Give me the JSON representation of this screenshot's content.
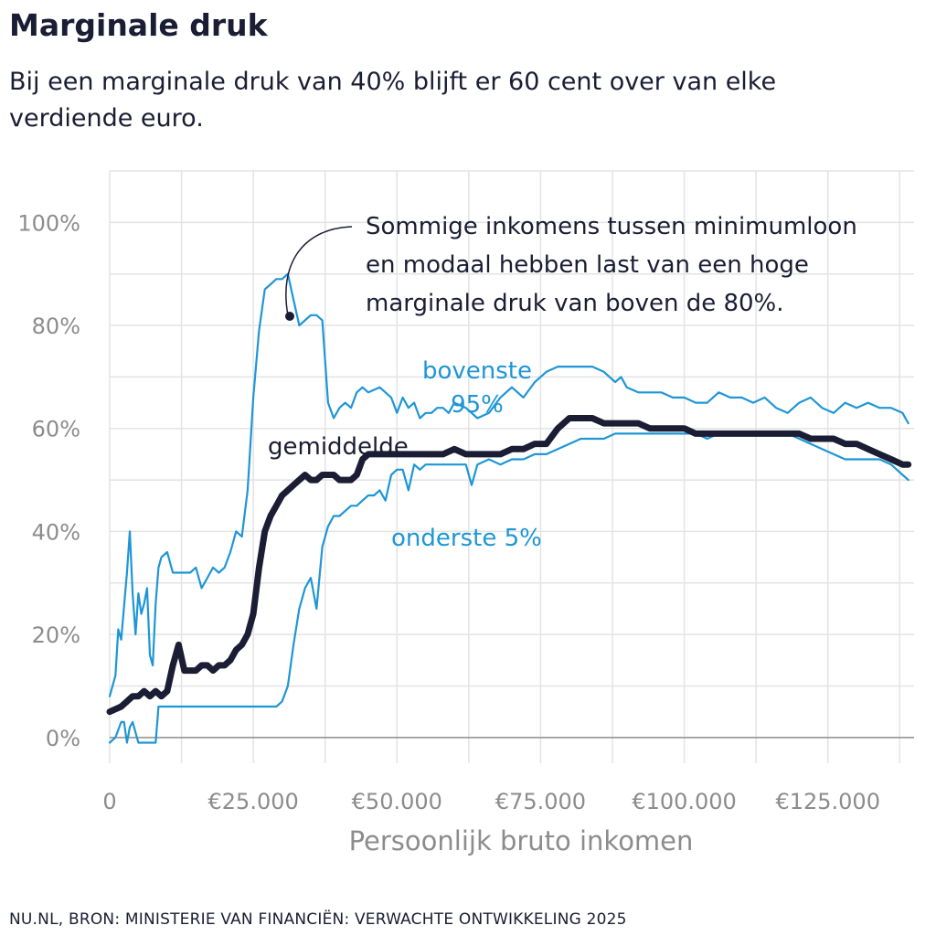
{
  "header": {
    "title": "Marginale druk",
    "subtitle": "Bij een marginale druk van 40% blijft er 60 cent over van elke verdiende euro."
  },
  "footer": {
    "source": "NU.NL, BRON: MINISTERIE VAN FINANCIËN:  VERWACHTE ONTWIKKELING 2025"
  },
  "annotations": {
    "note_line1": "Sommige inkomens tussen minimumloon",
    "note_line2": "en modaal hebben last van een hoge",
    "note_line3": "marginale druk van boven de 80%.",
    "upper_label_line1": "bovenste",
    "upper_label_line2": "95%",
    "mean_label": "gemiddelde",
    "lower_label": "onderste 5%"
  },
  "colors": {
    "mean": "#1a1d33",
    "band": "#1e96d6",
    "grid": "#e3e3e3",
    "zero_line": "#8c8c8c",
    "tick_text": "#8c8c8c"
  },
  "chart_data": {
    "type": "line",
    "title": "Marginale druk",
    "xlabel": "Persoonlijk bruto inkomen",
    "ylabel": "",
    "xlim": [
      0,
      140000
    ],
    "ylim": [
      -5,
      110
    ],
    "x_ticks": [
      0,
      25000,
      50000,
      75000,
      100000,
      125000
    ],
    "x_tick_labels": [
      "0",
      "€25.000",
      "€50.000",
      "€75.000",
      "€100.000",
      "€125.000"
    ],
    "y_ticks": [
      0,
      20,
      40,
      60,
      80,
      100
    ],
    "y_tick_labels": [
      "0%",
      "20%",
      "40%",
      "60%",
      "80%",
      "100%"
    ],
    "grid": true,
    "series": [
      {
        "name": "bovenste 95%",
        "x": [
          0,
          1000,
          1500,
          2000,
          3000,
          3500,
          4000,
          4500,
          5000,
          5500,
          6000,
          6500,
          7000,
          7500,
          8000,
          8500,
          9000,
          10000,
          11000,
          12000,
          13000,
          14000,
          15000,
          16000,
          17000,
          18000,
          19000,
          20000,
          21000,
          22000,
          23000,
          24000,
          25000,
          26000,
          27000,
          28000,
          29000,
          30000,
          31000,
          32000,
          33000,
          34000,
          35000,
          36000,
          37000,
          38000,
          39000,
          40000,
          41000,
          42000,
          43000,
          44000,
          45000,
          47000,
          49000,
          50000,
          51000,
          52000,
          53000,
          54000,
          55000,
          56000,
          57000,
          58000,
          59000,
          60000,
          62000,
          64000,
          66000,
          68000,
          70000,
          72000,
          74000,
          75000,
          76000,
          78000,
          80000,
          82000,
          84000,
          86000,
          88000,
          89000,
          90000,
          92000,
          94000,
          96000,
          98000,
          100000,
          102000,
          104000,
          106000,
          108000,
          110000,
          112000,
          114000,
          116000,
          118000,
          120000,
          122000,
          124000,
          126000,
          128000,
          130000,
          132000,
          134000,
          136000,
          138000,
          139000
        ],
        "values": [
          8,
          12,
          21,
          19,
          32,
          40,
          28,
          20,
          28,
          24,
          26,
          29,
          16,
          14,
          26,
          33,
          35,
          36,
          32,
          32,
          32,
          32,
          33,
          29,
          31,
          33,
          32,
          33,
          36,
          40,
          39,
          48,
          66,
          79,
          87,
          88,
          89,
          89,
          90,
          85,
          80,
          81,
          82,
          82,
          81,
          65,
          62,
          64,
          65,
          64,
          67,
          68,
          67,
          68,
          66,
          63,
          66,
          64,
          65,
          62,
          63,
          63,
          64,
          64,
          63,
          65,
          64,
          62,
          63,
          66,
          68,
          66,
          69,
          70,
          71,
          72,
          72,
          72,
          72,
          71,
          69,
          70,
          68,
          67,
          67,
          67,
          66,
          66,
          65,
          65,
          67,
          66,
          66,
          65,
          66,
          64,
          63,
          65,
          66,
          64,
          63,
          65,
          64,
          65,
          64,
          64,
          63,
          61
        ]
      },
      {
        "name": "gemiddelde",
        "x": [
          0,
          2000,
          3000,
          4000,
          5000,
          6000,
          7000,
          8000,
          9000,
          10000,
          11000,
          12000,
          13000,
          14000,
          15000,
          16000,
          17000,
          18000,
          19000,
          20000,
          21000,
          22000,
          23000,
          24000,
          25000,
          26000,
          27000,
          28000,
          29000,
          30000,
          31000,
          32000,
          33000,
          34000,
          35000,
          36000,
          37000,
          38000,
          39000,
          40000,
          41000,
          42000,
          43000,
          44000,
          45000,
          47000,
          50000,
          52000,
          54000,
          56000,
          58000,
          60000,
          62000,
          64000,
          66000,
          68000,
          70000,
          72000,
          74000,
          76000,
          78000,
          80000,
          82000,
          84000,
          86000,
          88000,
          90000,
          92000,
          94000,
          96000,
          98000,
          100000,
          102000,
          104000,
          106000,
          108000,
          110000,
          112000,
          114000,
          116000,
          118000,
          120000,
          122000,
          124000,
          126000,
          128000,
          130000,
          132000,
          134000,
          136000,
          138000,
          139000
        ],
        "values": [
          5,
          6,
          7,
          8,
          8,
          9,
          8,
          9,
          8,
          9,
          14,
          18,
          13,
          13,
          13,
          14,
          14,
          13,
          14,
          14,
          15,
          17,
          18,
          20,
          24,
          33,
          40,
          43,
          45,
          47,
          48,
          49,
          50,
          51,
          50,
          50,
          51,
          51,
          51,
          50,
          50,
          50,
          51,
          54,
          55,
          55,
          55,
          55,
          55,
          55,
          55,
          56,
          55,
          55,
          55,
          55,
          56,
          56,
          57,
          57,
          60,
          62,
          62,
          62,
          61,
          61,
          61,
          61,
          60,
          60,
          60,
          60,
          59,
          59,
          59,
          59,
          59,
          59,
          59,
          59,
          59,
          59,
          58,
          58,
          58,
          57,
          57,
          56,
          55,
          54,
          53,
          53
        ]
      },
      {
        "name": "onderste 5%",
        "x": [
          0,
          1000,
          2000,
          2500,
          3000,
          3500,
          4000,
          5000,
          6000,
          7000,
          8000,
          8500,
          9000,
          10000,
          15000,
          20000,
          25000,
          28000,
          29000,
          30000,
          31000,
          32000,
          33000,
          34000,
          35000,
          36000,
          37000,
          38000,
          39000,
          40000,
          41000,
          42000,
          43000,
          44000,
          45000,
          46000,
          47000,
          48000,
          49000,
          50000,
          51000,
          52000,
          53000,
          54000,
          55000,
          56000,
          57000,
          58000,
          59000,
          60000,
          61000,
          62000,
          63000,
          64000,
          66000,
          68000,
          70000,
          72000,
          74000,
          76000,
          78000,
          80000,
          82000,
          84000,
          86000,
          88000,
          90000,
          92000,
          94000,
          96000,
          98000,
          100000,
          102000,
          104000,
          106000,
          108000,
          110000,
          112000,
          114000,
          116000,
          118000,
          120000,
          122000,
          124000,
          126000,
          128000,
          130000,
          132000,
          134000,
          136000,
          138000,
          139000
        ],
        "values": [
          -1,
          0,
          3,
          3,
          -1,
          2,
          3,
          -1,
          -1,
          -1,
          -1,
          6,
          6,
          6,
          6,
          6,
          6,
          6,
          6,
          7,
          10,
          18,
          25,
          29,
          31,
          25,
          37,
          41,
          43,
          43,
          44,
          45,
          45,
          46,
          47,
          47,
          48,
          46,
          51,
          52,
          52,
          48,
          53,
          52,
          53,
          53,
          53,
          53,
          53,
          53,
          53,
          53,
          49,
          53,
          54,
          53,
          54,
          54,
          55,
          55,
          56,
          57,
          58,
          58,
          58,
          59,
          59,
          59,
          59,
          59,
          59,
          59,
          59,
          58,
          59,
          59,
          59,
          59,
          59,
          59,
          59,
          58,
          57,
          56,
          55,
          54,
          54,
          54,
          54,
          53,
          51,
          50
        ]
      }
    ]
  }
}
